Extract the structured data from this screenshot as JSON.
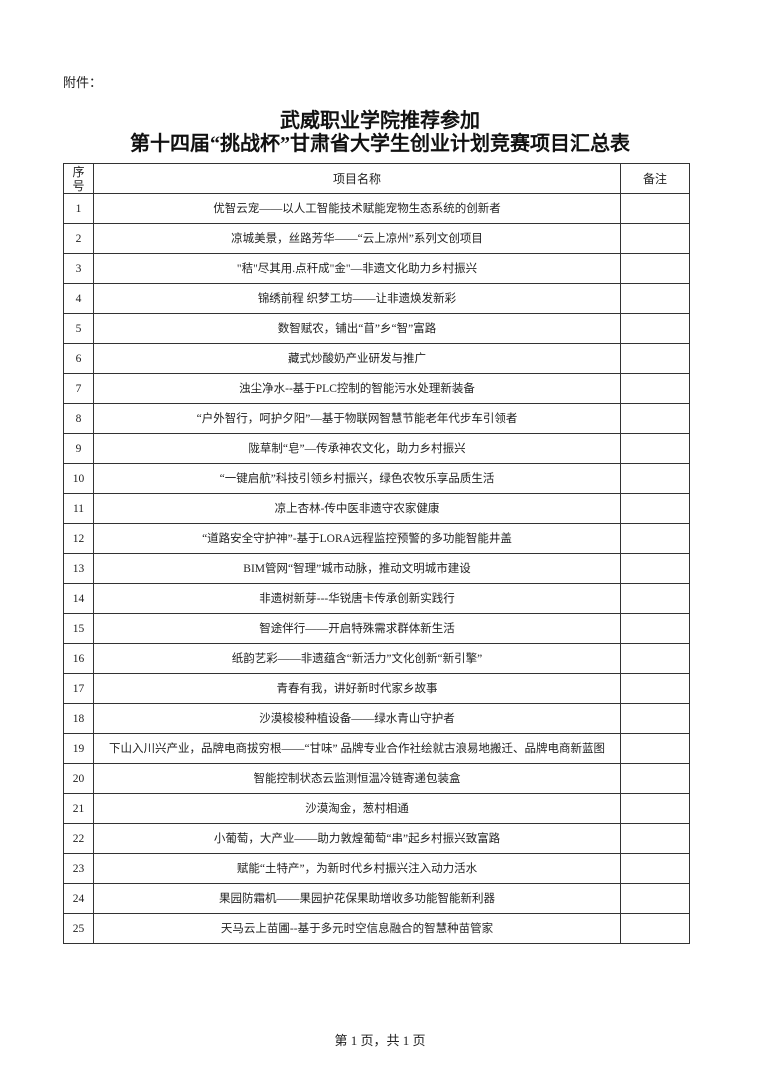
{
  "attachment_label": "附件：",
  "title_line1": "武威职业学院推荐参加",
  "title_line2": "第十四届“挑战杯”甘肃省大学生创业计划竞赛项目汇总表",
  "table": {
    "headers": [
      "序号",
      "项目名称",
      "备注"
    ],
    "rows": [
      {
        "no": "1",
        "name": "优智云宠——以人工智能技术赋能宠物生态系统的创新者",
        "remark": ""
      },
      {
        "no": "2",
        "name": "凉城美景，丝路芳华——“云上凉州”系列文创项目",
        "remark": ""
      },
      {
        "no": "3",
        "name": "\"秸\"尽其用.点秆成\"金\"—非遗文化助力乡村振兴",
        "remark": ""
      },
      {
        "no": "4",
        "name": "锦绣前程 织梦工坊——让非遗焕发新彩",
        "remark": ""
      },
      {
        "no": "5",
        "name": "数智赋农，铺出“苜”乡“智”富路",
        "remark": ""
      },
      {
        "no": "6",
        "name": "藏式炒酸奶产业研发与推广",
        "remark": ""
      },
      {
        "no": "7",
        "name": "浊尘净水--基于PLC控制的智能污水处理新装备",
        "remark": ""
      },
      {
        "no": "8",
        "name": "“户外智行，呵护夕阳”—基于物联网智慧节能老年代步车引领者",
        "remark": ""
      },
      {
        "no": "9",
        "name": "陇草制“皂”—传承神农文化，助力乡村振兴",
        "remark": ""
      },
      {
        "no": "10",
        "name": "“一键启航”科技引领乡村振兴，绿色农牧乐享品质生活",
        "remark": ""
      },
      {
        "no": "11",
        "name": "凉上杏林-传中医非遗守农家健康",
        "remark": ""
      },
      {
        "no": "12",
        "name": "“道路安全守护神”-基于LORA远程监控预警的多功能智能井盖",
        "remark": ""
      },
      {
        "no": "13",
        "name": "BIM管网“智理”城市动脉，推动文明城市建设",
        "remark": ""
      },
      {
        "no": "14",
        "name": "非遗树新芽---华锐唐卡传承创新实践行",
        "remark": ""
      },
      {
        "no": "15",
        "name": "智途伴行——开启特殊需求群体新生活",
        "remark": ""
      },
      {
        "no": "16",
        "name": "纸韵艺彩——非遗蕴含“新活力”文化创新“新引擎”",
        "remark": ""
      },
      {
        "no": "17",
        "name": "青春有我，讲好新时代家乡故事",
        "remark": ""
      },
      {
        "no": "18",
        "name": "沙漠梭梭种植设备——绿水青山守护者",
        "remark": ""
      },
      {
        "no": "19",
        "name": "下山入川兴产业，品牌电商拔穷根——“甘味” 品牌专业合作社绘就古浪易地搬迁、品牌电商新蓝图",
        "remark": ""
      },
      {
        "no": "20",
        "name": "智能控制状态云监测恒温冷链寄递包装盒",
        "remark": ""
      },
      {
        "no": "21",
        "name": "沙漠淘金，葱村相通",
        "remark": ""
      },
      {
        "no": "22",
        "name": "小葡萄，大产业——助力敦煌葡萄“串”起乡村振兴致富路",
        "remark": ""
      },
      {
        "no": "23",
        "name": "赋能“土特产”，为新时代乡村振兴注入动力活水",
        "remark": ""
      },
      {
        "no": "24",
        "name": "果园防霜机——果园护花保果助增收多功能智能新利器",
        "remark": ""
      },
      {
        "no": "25",
        "name": "天马云上苗圃--基于多元时空信息融合的智慧种苗管家",
        "remark": ""
      }
    ]
  },
  "footer": "第 1 页，共 1 页"
}
